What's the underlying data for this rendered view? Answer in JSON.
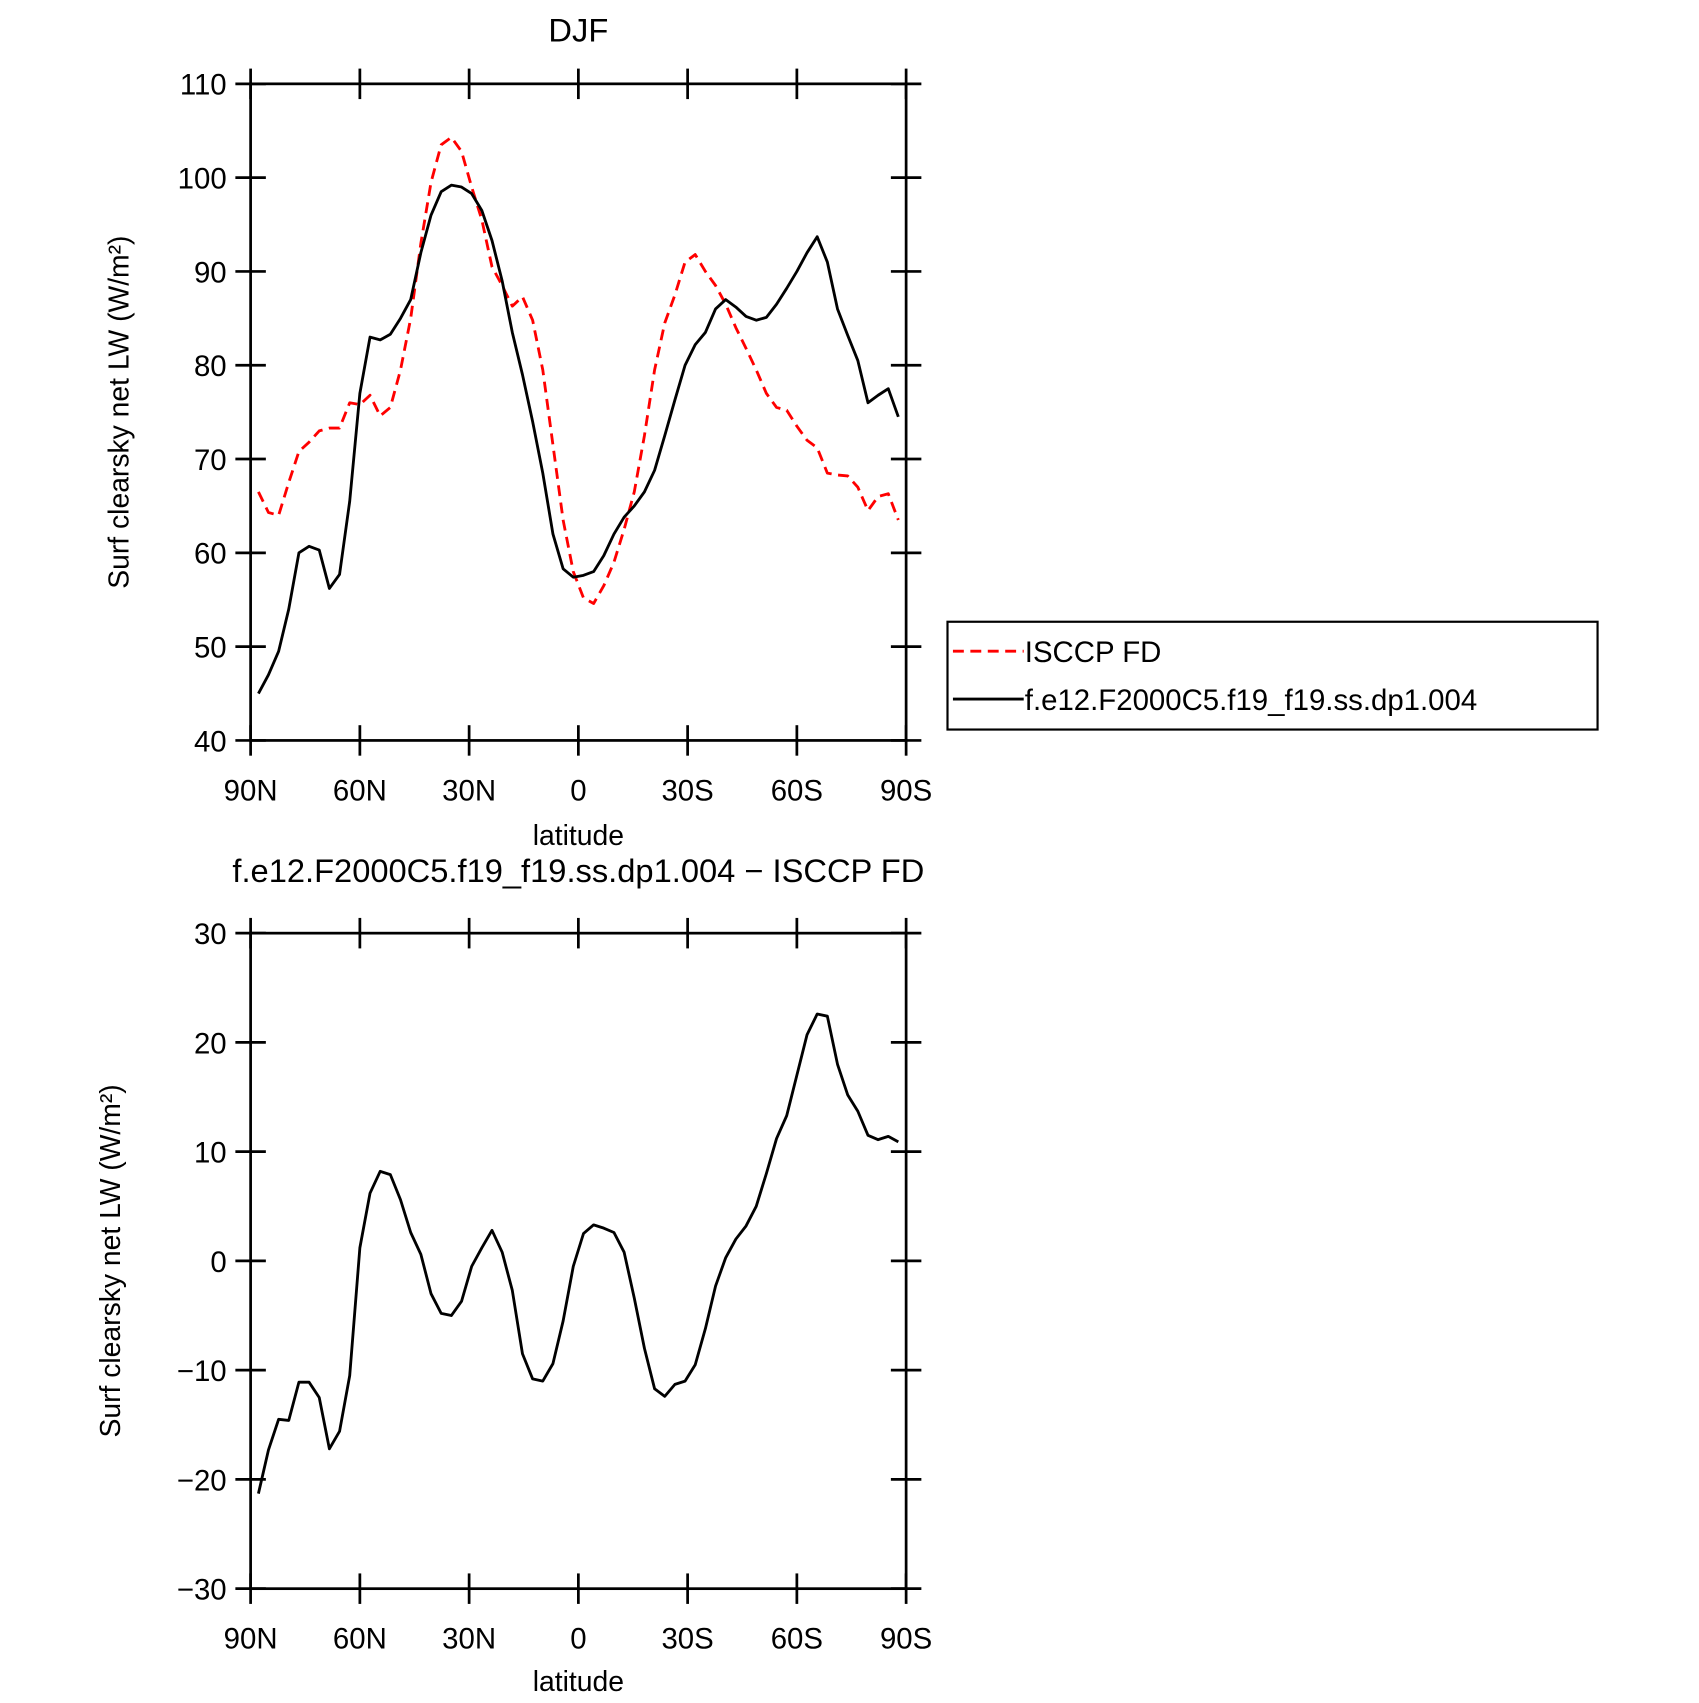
{
  "chart_data": [
    {
      "type": "line",
      "title": "DJF",
      "xlabel": "latitude",
      "ylabel": "Surf clearsky net LW (W/m²)",
      "x": [
        87.86,
        85.1,
        82.31,
        79.53,
        76.74,
        73.95,
        71.16,
        68.37,
        65.58,
        62.79,
        60.0,
        57.21,
        54.42,
        51.63,
        48.84,
        46.04,
        43.25,
        40.46,
        37.67,
        34.88,
        32.09,
        29.3,
        26.51,
        23.72,
        20.93,
        18.14,
        15.35,
        12.56,
        9.77,
        6.98,
        4.19,
        1.4,
        -1.4,
        -4.19,
        -6.98,
        -9.77,
        -12.56,
        -15.35,
        -18.14,
        -20.93,
        -23.72,
        -26.51,
        -29.3,
        -32.09,
        -34.88,
        -37.67,
        -40.46,
        -43.25,
        -46.04,
        -48.84,
        -51.63,
        -54.42,
        -57.21,
        -60.0,
        -62.79,
        -65.58,
        -68.37,
        -71.16,
        -73.95,
        -76.74,
        -79.53,
        -82.31,
        -85.1,
        -87.86
      ],
      "series": [
        {
          "name": "ISCCP FD",
          "color": "#ff0000",
          "dashed": true,
          "values": [
            66.5,
            64.3,
            64,
            67.5,
            70.8,
            71.8,
            73,
            73.3,
            73.3,
            76,
            75.8,
            76.8,
            74.6,
            75.5,
            79.5,
            85,
            93,
            99.5,
            103.5,
            104.3,
            102.8,
            99,
            95.5,
            90.5,
            88.5,
            86.3,
            87.3,
            84.8,
            79.5,
            71.5,
            63.5,
            58,
            55.2,
            54.6,
            56.5,
            59,
            62.5,
            66.5,
            72.5,
            79.5,
            84.5,
            87.5,
            91,
            91.8,
            90,
            88.5,
            86.5,
            84,
            81.8,
            79.5,
            77,
            75.5,
            75.2,
            73.5,
            72,
            71.2,
            68.5,
            68.3,
            68.2,
            67,
            64.5,
            66,
            66.3,
            63.5
          ]
        },
        {
          "name": "f.e12.F2000C5.f19_f19.ss.dp1.004",
          "color": "#000000",
          "dashed": false,
          "values": [
            45,
            47,
            49.5,
            54,
            60,
            60.7,
            60.3,
            56.2,
            57.7,
            65.5,
            77,
            83,
            82.7,
            83.3,
            85,
            87,
            92,
            96,
            98.5,
            99.2,
            99,
            98.3,
            96.5,
            93.3,
            89,
            83.5,
            79,
            74,
            68.5,
            62,
            58.3,
            57.4,
            57.6,
            58,
            59.7,
            62,
            63.8,
            65,
            66.5,
            68.8,
            72.5,
            76.3,
            80,
            82.2,
            83.5,
            86,
            87,
            86.2,
            85.2,
            84.8,
            85.1,
            86.5,
            88.2,
            90,
            92,
            93.7,
            91,
            86,
            83.2,
            80.5,
            76,
            76.8,
            77.5,
            74.5
          ]
        }
      ],
      "xlim": [
        90,
        -90
      ],
      "xticks": [
        {
          "value": 90,
          "label": "90N"
        },
        {
          "value": 60,
          "label": "60N"
        },
        {
          "value": 30,
          "label": "30N"
        },
        0,
        {
          "value": -30,
          "label": "30S"
        },
        {
          "value": -60,
          "label": "60S"
        },
        {
          "value": -90,
          "label": "90S"
        }
      ],
      "ylim": [
        40,
        110
      ],
      "yticks": [
        40,
        50,
        60,
        70,
        80,
        90,
        100,
        110
      ],
      "legend": "outside right"
    },
    {
      "type": "line",
      "title": "f.e12.F2000C5.f19_f19.ss.dp1.004 − ISCCP FD",
      "xlabel": "latitude",
      "ylabel": "Surf clearsky net LW (W/m²)",
      "x": [
        87.86,
        85.1,
        82.31,
        79.53,
        76.74,
        73.95,
        71.16,
        68.37,
        65.58,
        62.79,
        60.0,
        57.21,
        54.42,
        51.63,
        48.84,
        46.04,
        43.25,
        40.46,
        37.67,
        34.88,
        32.09,
        29.3,
        26.51,
        23.72,
        20.93,
        18.14,
        15.35,
        12.56,
        9.77,
        6.98,
        4.19,
        1.4,
        -1.4,
        -4.19,
        -6.98,
        -9.77,
        -12.56,
        -15.35,
        -18.14,
        -20.93,
        -23.72,
        -26.51,
        -29.3,
        -32.09,
        -34.88,
        -37.67,
        -40.46,
        -43.25,
        -46.04,
        -48.84,
        -51.63,
        -54.42,
        -57.21,
        -60.0,
        -62.79,
        -65.58,
        -68.37,
        -71.16,
        -73.95,
        -76.74,
        -79.53,
        -82.31,
        -85.1,
        -87.86
      ],
      "series": [
        {
          "color": "#000000",
          "dashed": false,
          "values": [
            -21.3,
            -17.3,
            -14.5,
            -14.6,
            -11.1,
            -11.1,
            -12.5,
            -17.2,
            -15.6,
            -10.5,
            1.2,
            6.2,
            8.2,
            7.9,
            5.6,
            2.6,
            0.6,
            -3,
            -4.8,
            -5,
            -3.7,
            -0.5,
            1.2,
            2.8,
            0.8,
            -2.7,
            -8.5,
            -10.8,
            -11,
            -9.4,
            -5.5,
            -0.5,
            2.5,
            3.3,
            3,
            2.6,
            0.8,
            -3.4,
            -8,
            -11.7,
            -12.4,
            -11.3,
            -11,
            -9.5,
            -6.2,
            -2.3,
            0.3,
            2,
            3.2,
            5,
            8,
            11.2,
            13.3,
            17,
            20.7,
            22.6,
            22.4,
            18,
            15.2,
            13.7,
            11.5,
            11.1,
            11.4,
            10.9
          ]
        }
      ],
      "xlim": [
        90,
        -90
      ],
      "xticks": [
        {
          "value": 90,
          "label": "90N"
        },
        {
          "value": 60,
          "label": "60N"
        },
        {
          "value": 30,
          "label": "30N"
        },
        0,
        {
          "value": -30,
          "label": "30S"
        },
        {
          "value": -60,
          "label": "60S"
        },
        {
          "value": -90,
          "label": "90S"
        }
      ],
      "ylim": [
        -30,
        30
      ],
      "yticks": [
        {
          "value": -30,
          "label": "−30"
        },
        {
          "value": -20,
          "label": "−20"
        },
        {
          "value": -10,
          "label": "−10"
        },
        0,
        10,
        20,
        30
      ]
    }
  ]
}
